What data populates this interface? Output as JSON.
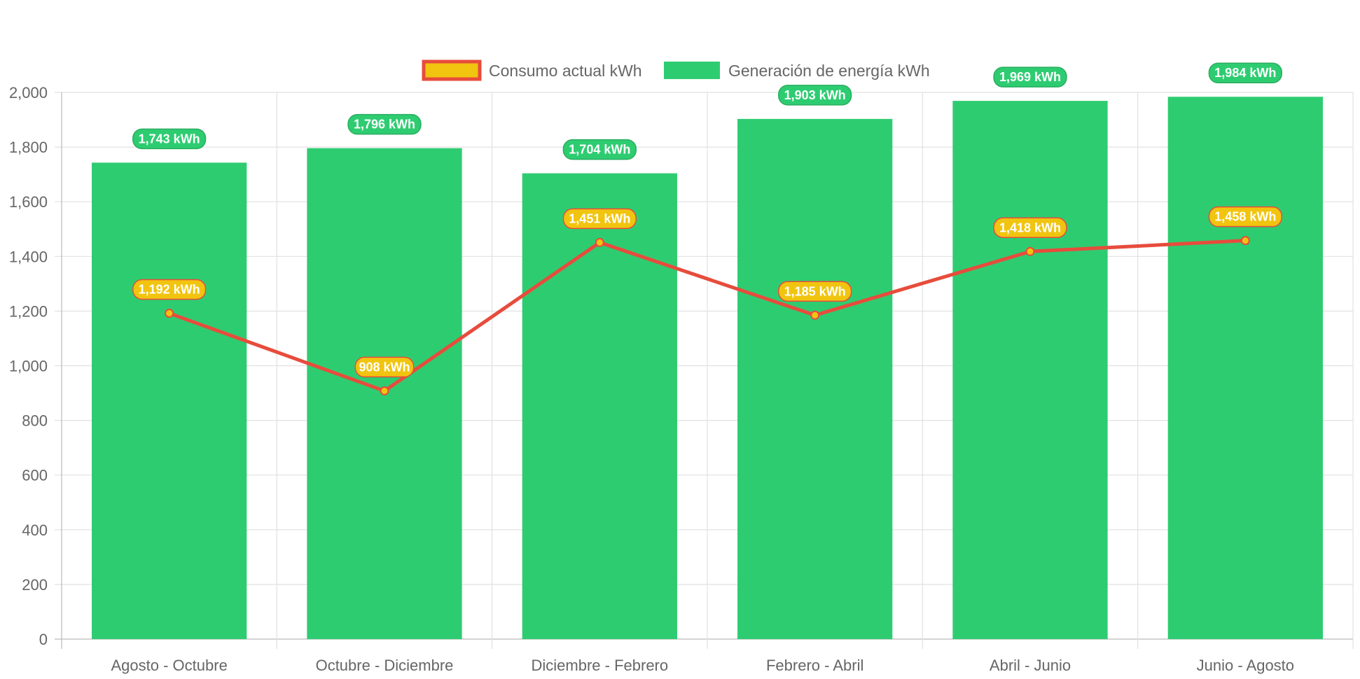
{
  "chart_data": {
    "type": "bar",
    "categories": [
      "Agosto - Octubre",
      "Octubre - Diciembre",
      "Diciembre - Febrero",
      "Febrero - Abril",
      "Abril - Junio",
      "Junio - Agosto"
    ],
    "series": [
      {
        "name": "Consumo actual kWh",
        "type": "line",
        "values": [
          1192,
          908,
          1451,
          1185,
          1418,
          1458
        ],
        "labels": [
          "1,192 kWh",
          "908 kWh",
          "1,451 kWh",
          "1,185 kWh",
          "1,418 kWh",
          "1,458 kWh"
        ],
        "color": "#e74c3c",
        "fill": "#f1c40f"
      },
      {
        "name": "Generación de energía kWh",
        "type": "bar",
        "values": [
          1743,
          1796,
          1704,
          1903,
          1969,
          1984
        ],
        "labels": [
          "1,743 kWh",
          "1,796 kWh",
          "1,704 kWh",
          "1,903 kWh",
          "1,969 kWh",
          "1,984 kWh"
        ],
        "color": "#2ecc71"
      }
    ],
    "ylim": [
      0,
      2000
    ],
    "yticks": [
      "0",
      "200",
      "400",
      "600",
      "800",
      "1,000",
      "1,200",
      "1,400",
      "1,600",
      "1,800",
      "2,000"
    ],
    "grid": true,
    "legend_position": "top-center"
  }
}
